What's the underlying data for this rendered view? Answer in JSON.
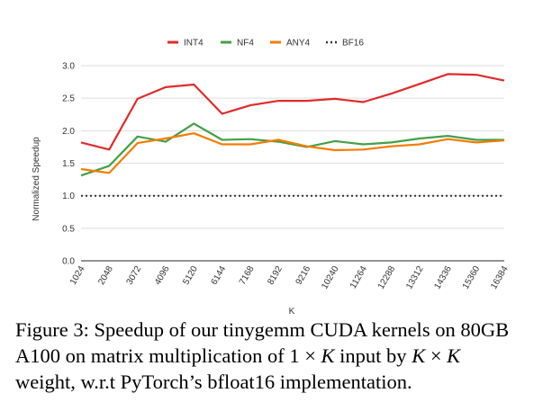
{
  "chart_data": {
    "type": "line",
    "x": [
      "1024",
      "2048",
      "3072",
      "4096",
      "5120",
      "6144",
      "7168",
      "8192",
      "9216",
      "10240",
      "11264",
      "12288",
      "13312",
      "14336",
      "15360",
      "16384"
    ],
    "series": [
      {
        "name": "INT4",
        "color": "#e02b2b",
        "style": "solid",
        "values": [
          1.82,
          1.71,
          2.49,
          2.67,
          2.71,
          2.26,
          2.39,
          2.46,
          2.46,
          2.49,
          2.44,
          2.57,
          2.72,
          2.87,
          2.86,
          2.77
        ]
      },
      {
        "name": "NF4",
        "color": "#43a047",
        "style": "solid",
        "values": [
          1.31,
          1.46,
          1.91,
          1.83,
          2.11,
          1.86,
          1.87,
          1.83,
          1.75,
          1.84,
          1.79,
          1.82,
          1.88,
          1.92,
          1.86,
          1.86
        ]
      },
      {
        "name": "ANY4",
        "color": "#f57c00",
        "style": "solid",
        "values": [
          1.41,
          1.35,
          1.81,
          1.88,
          1.96,
          1.79,
          1.79,
          1.86,
          1.76,
          1.7,
          1.71,
          1.76,
          1.79,
          1.87,
          1.82,
          1.85
        ]
      },
      {
        "name": "BF16",
        "color": "#333333",
        "style": "dotted",
        "values": [
          1.0,
          1.0,
          1.0,
          1.0,
          1.0,
          1.0,
          1.0,
          1.0,
          1.0,
          1.0,
          1.0,
          1.0,
          1.0,
          1.0,
          1.0,
          1.0
        ]
      }
    ],
    "yticks": [
      "0.0",
      "0.5",
      "1.0",
      "1.5",
      "2.0",
      "2.5",
      "3.0"
    ],
    "ylim": [
      0,
      3.0
    ],
    "xlabel": "K",
    "ylabel": "Normalized Speedup",
    "legend_position": "top-center",
    "grid": "horizontal"
  },
  "caption": {
    "line1": "Figure 3: Speedup of our tinygemm CUDA kernels on 80GB",
    "line2_a": "A100 on matrix multiplication of 1 × ",
    "line2_k1": "K",
    "line2_b": " input by ",
    "line2_k2": "K",
    "line2_c": " × ",
    "line2_k3": "K",
    "line3": "weight, w.r.t PyTorch’s bfloat16 implementation."
  }
}
